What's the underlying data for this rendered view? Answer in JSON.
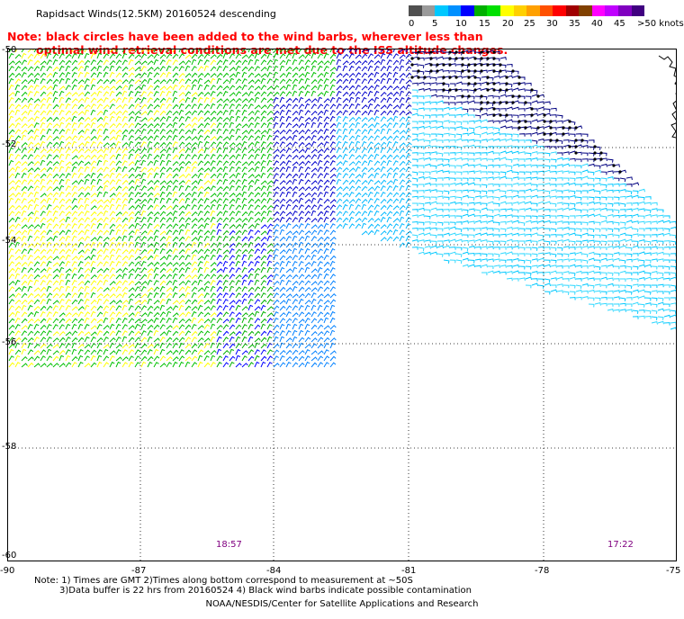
{
  "header": {
    "title": "Rapidsact Winds(12.5KM) 20160524 descending",
    "note_line1": "Note: black circles have been added to the wind barbs, wherever less than",
    "note_line2": "optimal wind retrieval conditions are met due to the ISS altitude changes."
  },
  "colorbar": {
    "colors": [
      "#505050",
      "#9a9a9a",
      "#00c8ff",
      "#0090ff",
      "#0000ff",
      "#00b000",
      "#00e000",
      "#ffff00",
      "#ffd000",
      "#ffa000",
      "#ff5000",
      "#ff0000",
      "#a00000",
      "#804000",
      "#ff00ff",
      "#c000ff",
      "#8000c0",
      "#400080"
    ],
    "labels": [
      "0",
      "5",
      "10",
      "15",
      "20",
      "25",
      "30",
      "35",
      "40",
      "45",
      ">50 knots"
    ]
  },
  "map": {
    "lat_labels": [
      "-50",
      "-52",
      "-54",
      "-56",
      "-58",
      "-60"
    ],
    "lon_labels": [
      "-90",
      "-87",
      "-84",
      "-81",
      "-78",
      "-75"
    ],
    "lat_range": [
      -60,
      -50
    ],
    "lon_range": [
      -90,
      -75
    ],
    "gridlines": "dotted",
    "time_labels": [
      "18:57",
      "17:22"
    ],
    "time_color": "#800080",
    "wind_barbs": "swath of wind barbs colored by speed; black-circled barbs where retrieval is less than optimal"
  },
  "footer": {
    "line1": "Note: 1) Times are GMT 2)Times along bottom correspond to measurement at ~50S",
    "line2": "3)Data buffer is 22 hrs from 20160524 4) Black wind barbs indicate possible contamination",
    "credit": "NOAA/NESDIS/Center for Satellite Applications and Research"
  }
}
